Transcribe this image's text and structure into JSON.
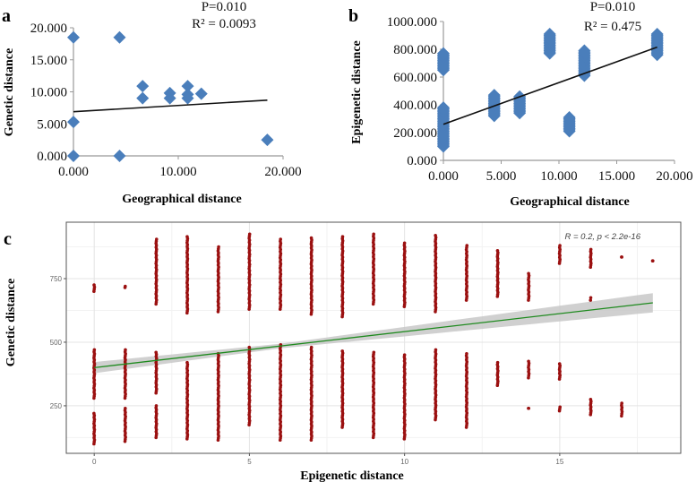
{
  "chart_data": [
    {
      "id": "a",
      "type": "scatter",
      "panel_label": "a",
      "xlabel": "Geographical distance",
      "ylabel": "Genetic distance",
      "xlim": [
        0,
        20
      ],
      "ylim": [
        0,
        20
      ],
      "xticks": [
        "0.000",
        "10.000",
        "20.000"
      ],
      "xtick_values": [
        0,
        10,
        20
      ],
      "yticks": [
        "0.000",
        "5.000",
        "10.000",
        "15.000",
        "20.000"
      ],
      "ytick_values": [
        0,
        5,
        10,
        15,
        20
      ],
      "annotation_p": "P=0.010",
      "annotation_r2": "R² = 0.0093",
      "marker": "diamond",
      "color": "#4a7ebb",
      "points": [
        [
          0,
          18.5
        ],
        [
          4.4,
          18.5
        ],
        [
          6.6,
          10.9
        ],
        [
          6.6,
          9.0
        ],
        [
          9.2,
          9.8
        ],
        [
          9.2,
          9.0
        ],
        [
          10.9,
          10.9
        ],
        [
          10.9,
          9.6
        ],
        [
          10.9,
          9.0
        ],
        [
          12.2,
          9.7
        ],
        [
          18.5,
          2.5
        ],
        [
          0,
          5.3
        ],
        [
          0,
          0
        ],
        [
          4.4,
          0
        ]
      ],
      "trendline": [
        [
          0,
          6.9
        ],
        [
          18.5,
          8.7
        ]
      ]
    },
    {
      "id": "b",
      "type": "scatter",
      "panel_label": "b",
      "xlabel": "Geographical distance",
      "ylabel": "Epigenetic distance",
      "xlim": [
        0,
        20
      ],
      "ylim": [
        0,
        1000
      ],
      "xticks": [
        "0.000",
        "5.000",
        "10.000",
        "15.000",
        "20.000"
      ],
      "xtick_values": [
        0,
        5,
        10,
        15,
        20
      ],
      "yticks": [
        "0.000",
        "200.000",
        "400.000",
        "600.000",
        "800.000",
        "1000.000"
      ],
      "ytick_values": [
        0,
        200,
        400,
        600,
        800,
        1000
      ],
      "annotation_p": "P=0.010",
      "annotation_r2": "R² = 0.475",
      "marker": "diamond",
      "color": "#4a7ebb",
      "clusters": [
        {
          "x": 0,
          "y_range": [
            100,
            380
          ]
        },
        {
          "x": 0,
          "y_range": [
            650,
            770
          ]
        },
        {
          "x": 4.4,
          "y_range": [
            320,
            470
          ]
        },
        {
          "x": 6.6,
          "y_range": [
            340,
            460
          ]
        },
        {
          "x": 9.2,
          "y_range": [
            770,
            910
          ]
        },
        {
          "x": 10.9,
          "y_range": [
            210,
            310
          ]
        },
        {
          "x": 12.2,
          "y_range": [
            610,
            790
          ]
        },
        {
          "x": 18.5,
          "y_range": [
            760,
            910
          ]
        }
      ],
      "trendline": [
        [
          0,
          260
        ],
        [
          18.5,
          815
        ]
      ]
    },
    {
      "id": "c",
      "type": "scatter",
      "panel_label": "c",
      "xlabel": "Epigenetic distance",
      "ylabel": "Genetic distance",
      "xlim": [
        -0.9,
        18.9
      ],
      "ylim": [
        63,
        972
      ],
      "xticks": [
        "0",
        "5",
        "10",
        "15"
      ],
      "xtick_values": [
        0,
        5,
        10,
        15
      ],
      "yticks": [
        "250",
        "500",
        "750"
      ],
      "ytick_values": [
        250,
        500,
        750
      ],
      "annotation": "R = 0.2, p < 2.2e-16",
      "point_color": "#9b1010",
      "line_color": "#1f8a1f",
      "ci_color": "#c8c8c8",
      "columns": [
        {
          "x": 0,
          "y_ranges": [
            [
              100,
              220
            ],
            [
              280,
              470
            ],
            [
              700,
              725
            ]
          ]
        },
        {
          "x": 1,
          "y_ranges": [
            [
              110,
              240
            ],
            [
              280,
              470
            ],
            [
              715,
              720
            ]
          ]
        },
        {
          "x": 2,
          "y_ranges": [
            [
              125,
              250
            ],
            [
              300,
              460
            ],
            [
              650,
              905
            ]
          ]
        },
        {
          "x": 3,
          "y_ranges": [
            [
              120,
              420
            ],
            [
              615,
              915
            ]
          ]
        },
        {
          "x": 4,
          "y_ranges": [
            [
              115,
              455
            ],
            [
              620,
              875
            ]
          ]
        },
        {
          "x": 5,
          "y_ranges": [
            [
              175,
              480
            ],
            [
              630,
              925
            ]
          ]
        },
        {
          "x": 6,
          "y_ranges": [
            [
              115,
              490
            ],
            [
              630,
              905
            ]
          ]
        },
        {
          "x": 7,
          "y_ranges": [
            [
              115,
              480
            ],
            [
              610,
              910
            ]
          ]
        },
        {
          "x": 8,
          "y_ranges": [
            [
              165,
              465
            ],
            [
              600,
              915
            ]
          ]
        },
        {
          "x": 9,
          "y_ranges": [
            [
              125,
              460
            ],
            [
              650,
              925
            ]
          ]
        },
        {
          "x": 10,
          "y_ranges": [
            [
              120,
              450
            ],
            [
              640,
              890
            ]
          ]
        },
        {
          "x": 11,
          "y_ranges": [
            [
              195,
              470
            ],
            [
              620,
              920
            ]
          ]
        },
        {
          "x": 12,
          "y_ranges": [
            [
              165,
              455
            ],
            [
              665,
              880
            ]
          ]
        },
        {
          "x": 13,
          "y_ranges": [
            [
              330,
              420
            ],
            [
              680,
              860
            ]
          ]
        },
        {
          "x": 14,
          "y_ranges": [
            [
              240,
              240
            ],
            [
              360,
              425
            ],
            [
              665,
              770
            ]
          ]
        },
        {
          "x": 15,
          "y_ranges": [
            [
              230,
              245
            ],
            [
              355,
              415
            ],
            [
              810,
              880
            ]
          ]
        },
        {
          "x": 16,
          "y_ranges": [
            [
              215,
              275
            ],
            [
              665,
              675
            ],
            [
              795,
              865
            ]
          ]
        },
        {
          "x": 17,
          "y_ranges": [
            [
              210,
              260
            ],
            [
              835,
              835
            ]
          ]
        },
        {
          "x": 18,
          "y_ranges": [
            [
              820,
              820
            ]
          ]
        }
      ],
      "fit_line": [
        [
          0,
          400
        ],
        [
          18,
          655
        ]
      ],
      "ci_halfwidth": [
        [
          0,
          22
        ],
        [
          6,
          9
        ],
        [
          18,
          38
        ]
      ]
    }
  ]
}
